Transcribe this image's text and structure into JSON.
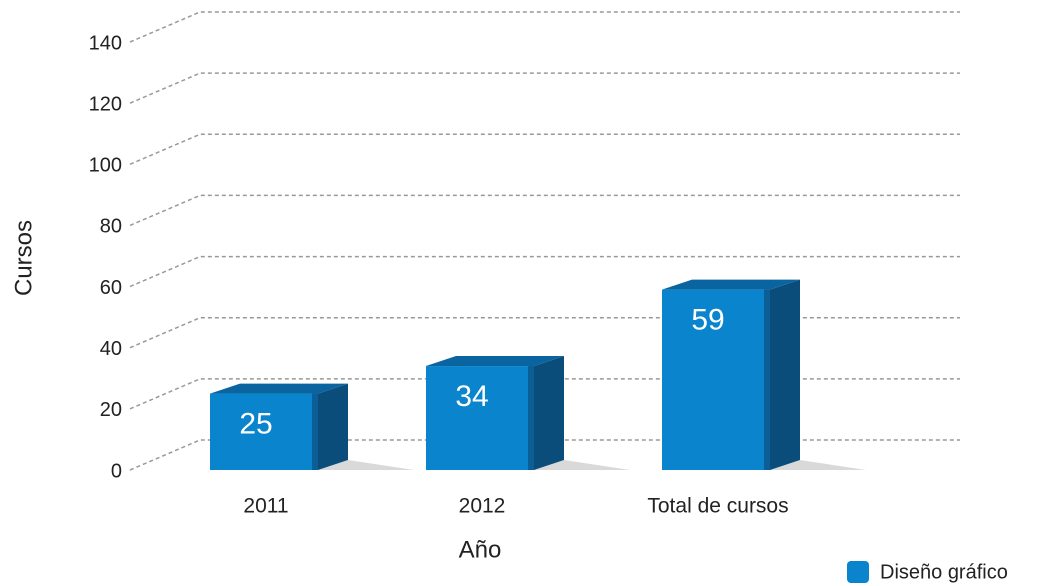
{
  "chart_data": {
    "type": "bar3d",
    "categories": [
      "2011",
      "2012",
      "Total de cursos"
    ],
    "values": [
      25,
      34,
      59
    ],
    "color": "#0a84cc",
    "ylim": [
      0,
      140
    ],
    "yticks": [
      0,
      20,
      40,
      60,
      80,
      100,
      120,
      140
    ],
    "grid": true,
    "x_label": "Año",
    "y_label": "Cursos",
    "series_name": "Diseño gráfico",
    "legend": "bottom-right"
  }
}
